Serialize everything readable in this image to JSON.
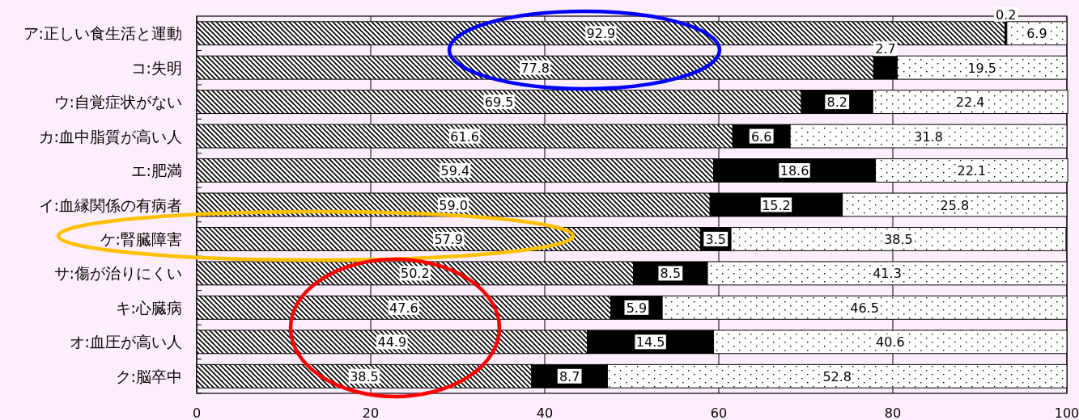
{
  "chart_data": {
    "type": "bar",
    "orientation": "horizontal",
    "stacked": true,
    "categories": [
      "ア:正しい食生活と運動",
      "コ:失明",
      "ウ:自覚症状がない",
      "カ:血中脂質が高い人",
      "エ:肥満",
      "イ:血縁関係の有病者",
      "ケ:腎臓障害",
      "サ:傷が治りにくい",
      "キ:心臓病",
      "オ:血圧が高い人",
      "ク:脳卒中"
    ],
    "series": [
      {
        "color": "#000000",
        "values": [
          92.9,
          77.8,
          69.5,
          61.6,
          59.4,
          59.0,
          57.9,
          50.2,
          47.6,
          44.9,
          38.5
        ],
        "value_labels": [
          "92.9",
          "77.8",
          "69.5",
          "61.6",
          "59.4",
          "59.0",
          "57.9",
          "50.2",
          "47.6",
          "44.9",
          "38.5"
        ]
      },
      {
        "color": "#000000",
        "values": [
          0.2,
          2.7,
          8.2,
          6.6,
          18.6,
          15.2,
          3.5,
          8.5,
          5.9,
          14.5,
          8.7
        ],
        "value_labels": [
          "0.2",
          "2.7",
          "8.2",
          "6.6",
          "18.6",
          "15.2",
          "3.5",
          "8.5",
          "5.9",
          "14.5",
          "8.7"
        ]
      },
      {
        "color": "#000000",
        "values": [
          6.9,
          19.5,
          22.4,
          31.8,
          22.1,
          25.8,
          38.5,
          41.3,
          46.5,
          40.6,
          52.8
        ],
        "value_labels": [
          "6.9",
          "19.5",
          "22.4",
          "31.8",
          "22.1",
          "25.8",
          "38.5",
          "41.3",
          "46.5",
          "40.6",
          "52.8"
        ]
      }
    ],
    "xlim": [
      0,
      100
    ],
    "xticks": [
      0,
      20,
      40,
      60,
      80,
      100
    ],
    "grid": "x"
  }
}
